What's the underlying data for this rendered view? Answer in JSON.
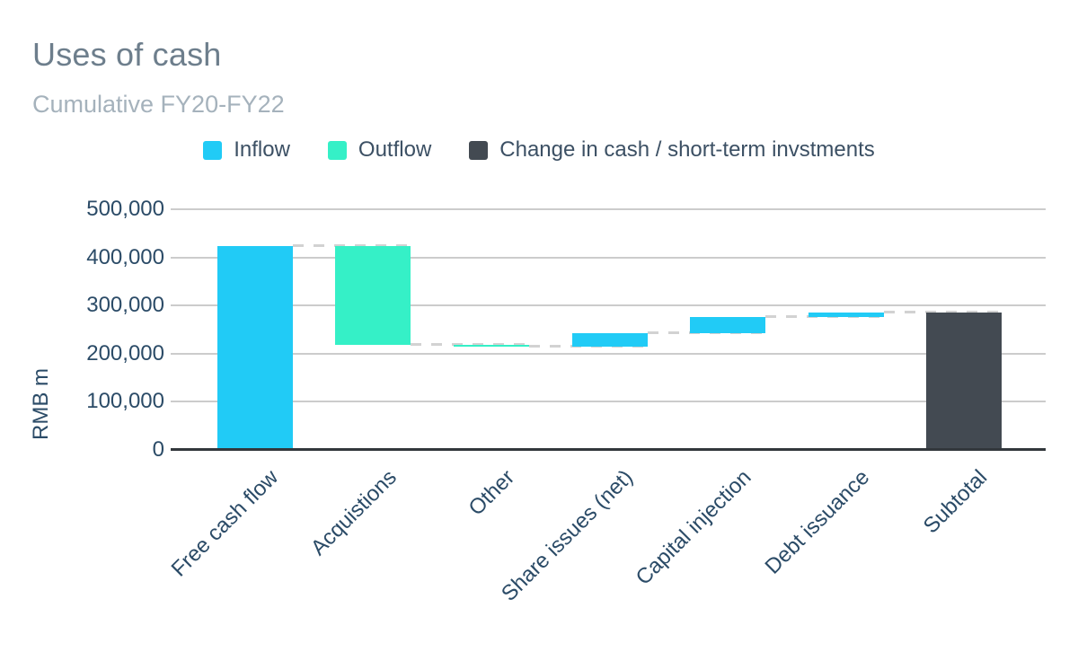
{
  "chart_data": {
    "type": "waterfall",
    "title": "Uses of cash",
    "subtitle": "Cumulative FY20-FY22",
    "ylabel": "RMB m",
    "ylim": [
      0,
      500000
    ],
    "ytick_step": 100000,
    "ytick_labels": [
      "0",
      "100,000",
      "200,000",
      "300,000",
      "400,000",
      "500,000"
    ],
    "grid": true,
    "legend_position": "top",
    "categories": [
      "Free cash flow",
      "Acquistions",
      "Other",
      "Share issues (net)",
      "Capital injection",
      "Debt issuance",
      "Subtotal"
    ],
    "steps": [
      {
        "label": "Free cash flow",
        "value": 423000,
        "role": "inflow",
        "cumulative": 423000
      },
      {
        "label": "Acquistions",
        "value": -204000,
        "role": "outflow",
        "cumulative": 219000
      },
      {
        "label": "Other",
        "value": -5000,
        "role": "outflow",
        "cumulative": 214000
      },
      {
        "label": "Share issues (net)",
        "value": 29000,
        "role": "inflow",
        "cumulative": 243000
      },
      {
        "label": "Capital injection",
        "value": 34000,
        "role": "inflow",
        "cumulative": 277000
      },
      {
        "label": "Debt issuance",
        "value": 8000,
        "role": "inflow",
        "cumulative": 285000
      },
      {
        "label": "Subtotal",
        "value": 285000,
        "role": "total",
        "cumulative": 285000
      }
    ],
    "series_colors": {
      "inflow": "#21cbf6",
      "outflow": "#35f0c7",
      "total": "#434a52"
    },
    "legend": [
      {
        "label": "Inflow",
        "role": "inflow",
        "color": "#21cbf6"
      },
      {
        "label": "Outflow",
        "role": "outflow",
        "color": "#35f0c7"
      },
      {
        "label": "Change in cash / short-term invstments",
        "role": "total",
        "color": "#434a52"
      }
    ]
  }
}
